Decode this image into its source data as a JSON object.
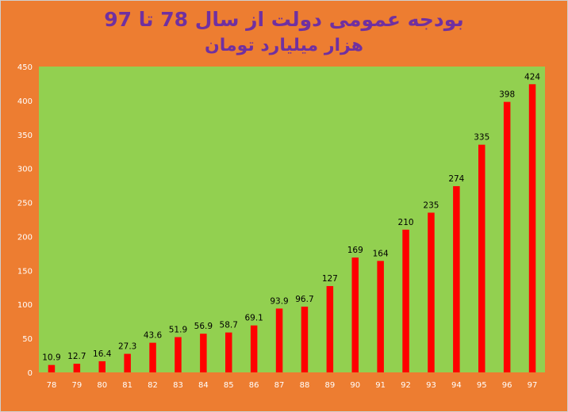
{
  "chart_data": {
    "type": "bar",
    "title": "بودجه عمومی دولت از سال 78 تا 97",
    "subtitle": "هزار میلیارد تومان",
    "xlabel": "",
    "ylabel": "",
    "categories": [
      "78",
      "79",
      "80",
      "81",
      "82",
      "83",
      "84",
      "85",
      "86",
      "87",
      "88",
      "89",
      "90",
      "91",
      "92",
      "93",
      "94",
      "95",
      "96",
      "97"
    ],
    "values": [
      10.9,
      12.7,
      16.4,
      27.3,
      43.6,
      51.9,
      56.9,
      58.7,
      69.1,
      93.9,
      96.7,
      127,
      169,
      164,
      210,
      235,
      274,
      335,
      398,
      424
    ],
    "ylim": [
      0,
      450
    ],
    "yticks": [
      0,
      50,
      100,
      150,
      200,
      250,
      300,
      350,
      400,
      450
    ],
    "grid": false,
    "legend": "none",
    "colors": {
      "bar": "#FF0000",
      "plot_background": "#92D050",
      "chart_background": "#ED7D31",
      "title": "#7030A0",
      "axis_text": "#FFFFFF"
    }
  }
}
